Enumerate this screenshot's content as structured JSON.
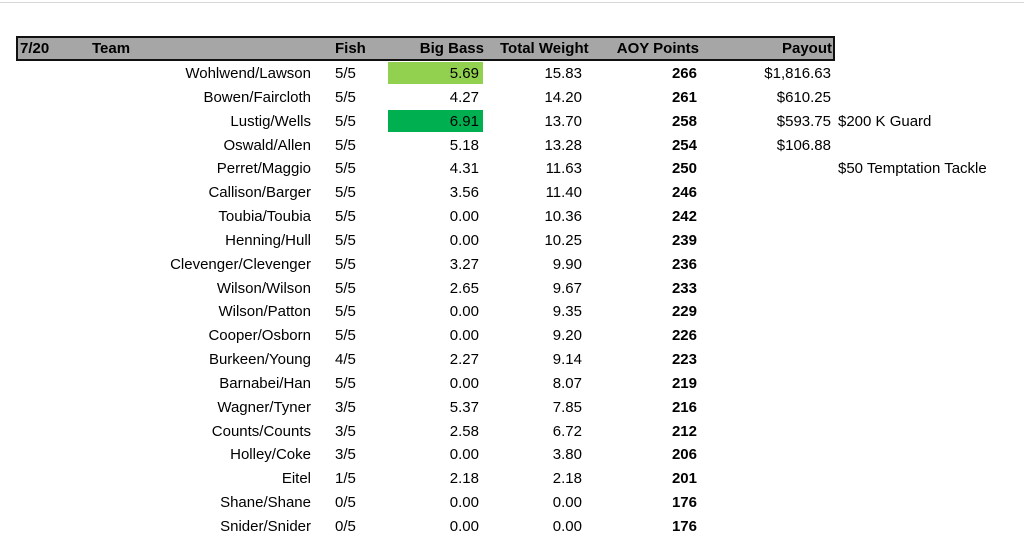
{
  "header": {
    "date": "7/20",
    "team": "Team",
    "fish": "Fish",
    "big_bass": "Big Bass",
    "total_weight": "Total Weight",
    "aoy_points": "AOY Points",
    "payout": "Payout"
  },
  "highlight_colors": {
    "light_green": "#92d050",
    "dark_green": "#00b050"
  },
  "rows": [
    {
      "team": "Wohlwend/Lawson",
      "fish": "5/5",
      "big_bass": "5.69",
      "total_weight": "15.83",
      "aoy": "266",
      "payout": "$1,816.63",
      "note": "",
      "highlight": "light_green"
    },
    {
      "team": "Bowen/Faircloth",
      "fish": "5/5",
      "big_bass": "4.27",
      "total_weight": "14.20",
      "aoy": "261",
      "payout": "$610.25",
      "note": "",
      "highlight": ""
    },
    {
      "team": "Lustig/Wells",
      "fish": "5/5",
      "big_bass": "6.91",
      "total_weight": "13.70",
      "aoy": "258",
      "payout": "$593.75",
      "note": "$200 K Guard",
      "highlight": "dark_green"
    },
    {
      "team": "Oswald/Allen",
      "fish": "5/5",
      "big_bass": "5.18",
      "total_weight": "13.28",
      "aoy": "254",
      "payout": "$106.88",
      "note": "",
      "highlight": ""
    },
    {
      "team": "Perret/Maggio",
      "fish": "5/5",
      "big_bass": "4.31",
      "total_weight": "11.63",
      "aoy": "250",
      "payout": "",
      "note": "$50 Temptation Tackle",
      "highlight": ""
    },
    {
      "team": "Callison/Barger",
      "fish": "5/5",
      "big_bass": "3.56",
      "total_weight": "11.40",
      "aoy": "246",
      "payout": "",
      "note": "",
      "highlight": ""
    },
    {
      "team": "Toubia/Toubia",
      "fish": "5/5",
      "big_bass": "0.00",
      "total_weight": "10.36",
      "aoy": "242",
      "payout": "",
      "note": "",
      "highlight": ""
    },
    {
      "team": "Henning/Hull",
      "fish": "5/5",
      "big_bass": "0.00",
      "total_weight": "10.25",
      "aoy": "239",
      "payout": "",
      "note": "",
      "highlight": ""
    },
    {
      "team": "Clevenger/Clevenger",
      "fish": "5/5",
      "big_bass": "3.27",
      "total_weight": "9.90",
      "aoy": "236",
      "payout": "",
      "note": "",
      "highlight": ""
    },
    {
      "team": "Wilson/Wilson",
      "fish": "5/5",
      "big_bass": "2.65",
      "total_weight": "9.67",
      "aoy": "233",
      "payout": "",
      "note": "",
      "highlight": ""
    },
    {
      "team": "Wilson/Patton",
      "fish": "5/5",
      "big_bass": "0.00",
      "total_weight": "9.35",
      "aoy": "229",
      "payout": "",
      "note": "",
      "highlight": ""
    },
    {
      "team": "Cooper/Osborn",
      "fish": "5/5",
      "big_bass": "0.00",
      "total_weight": "9.20",
      "aoy": "226",
      "payout": "",
      "note": "",
      "highlight": ""
    },
    {
      "team": "Burkeen/Young",
      "fish": "4/5",
      "big_bass": "2.27",
      "total_weight": "9.14",
      "aoy": "223",
      "payout": "",
      "note": "",
      "highlight": ""
    },
    {
      "team": "Barnabei/Han",
      "fish": "5/5",
      "big_bass": "0.00",
      "total_weight": "8.07",
      "aoy": "219",
      "payout": "",
      "note": "",
      "highlight": ""
    },
    {
      "team": "Wagner/Tyner",
      "fish": "3/5",
      "big_bass": "5.37",
      "total_weight": "7.85",
      "aoy": "216",
      "payout": "",
      "note": "",
      "highlight": ""
    },
    {
      "team": "Counts/Counts",
      "fish": "3/5",
      "big_bass": "2.58",
      "total_weight": "6.72",
      "aoy": "212",
      "payout": "",
      "note": "",
      "highlight": ""
    },
    {
      "team": "Holley/Coke",
      "fish": "3/5",
      "big_bass": "0.00",
      "total_weight": "3.80",
      "aoy": "206",
      "payout": "",
      "note": "",
      "highlight": ""
    },
    {
      "team": "Eitel",
      "fish": "1/5",
      "big_bass": "2.18",
      "total_weight": "2.18",
      "aoy": "201",
      "payout": "",
      "note": "",
      "highlight": ""
    },
    {
      "team": "Shane/Shane",
      "fish": "0/5",
      "big_bass": "0.00",
      "total_weight": "0.00",
      "aoy": "176",
      "payout": "",
      "note": "",
      "highlight": ""
    },
    {
      "team": "Snider/Snider",
      "fish": "0/5",
      "big_bass": "0.00",
      "total_weight": "0.00",
      "aoy": "176",
      "payout": "",
      "note": "",
      "highlight": ""
    }
  ]
}
